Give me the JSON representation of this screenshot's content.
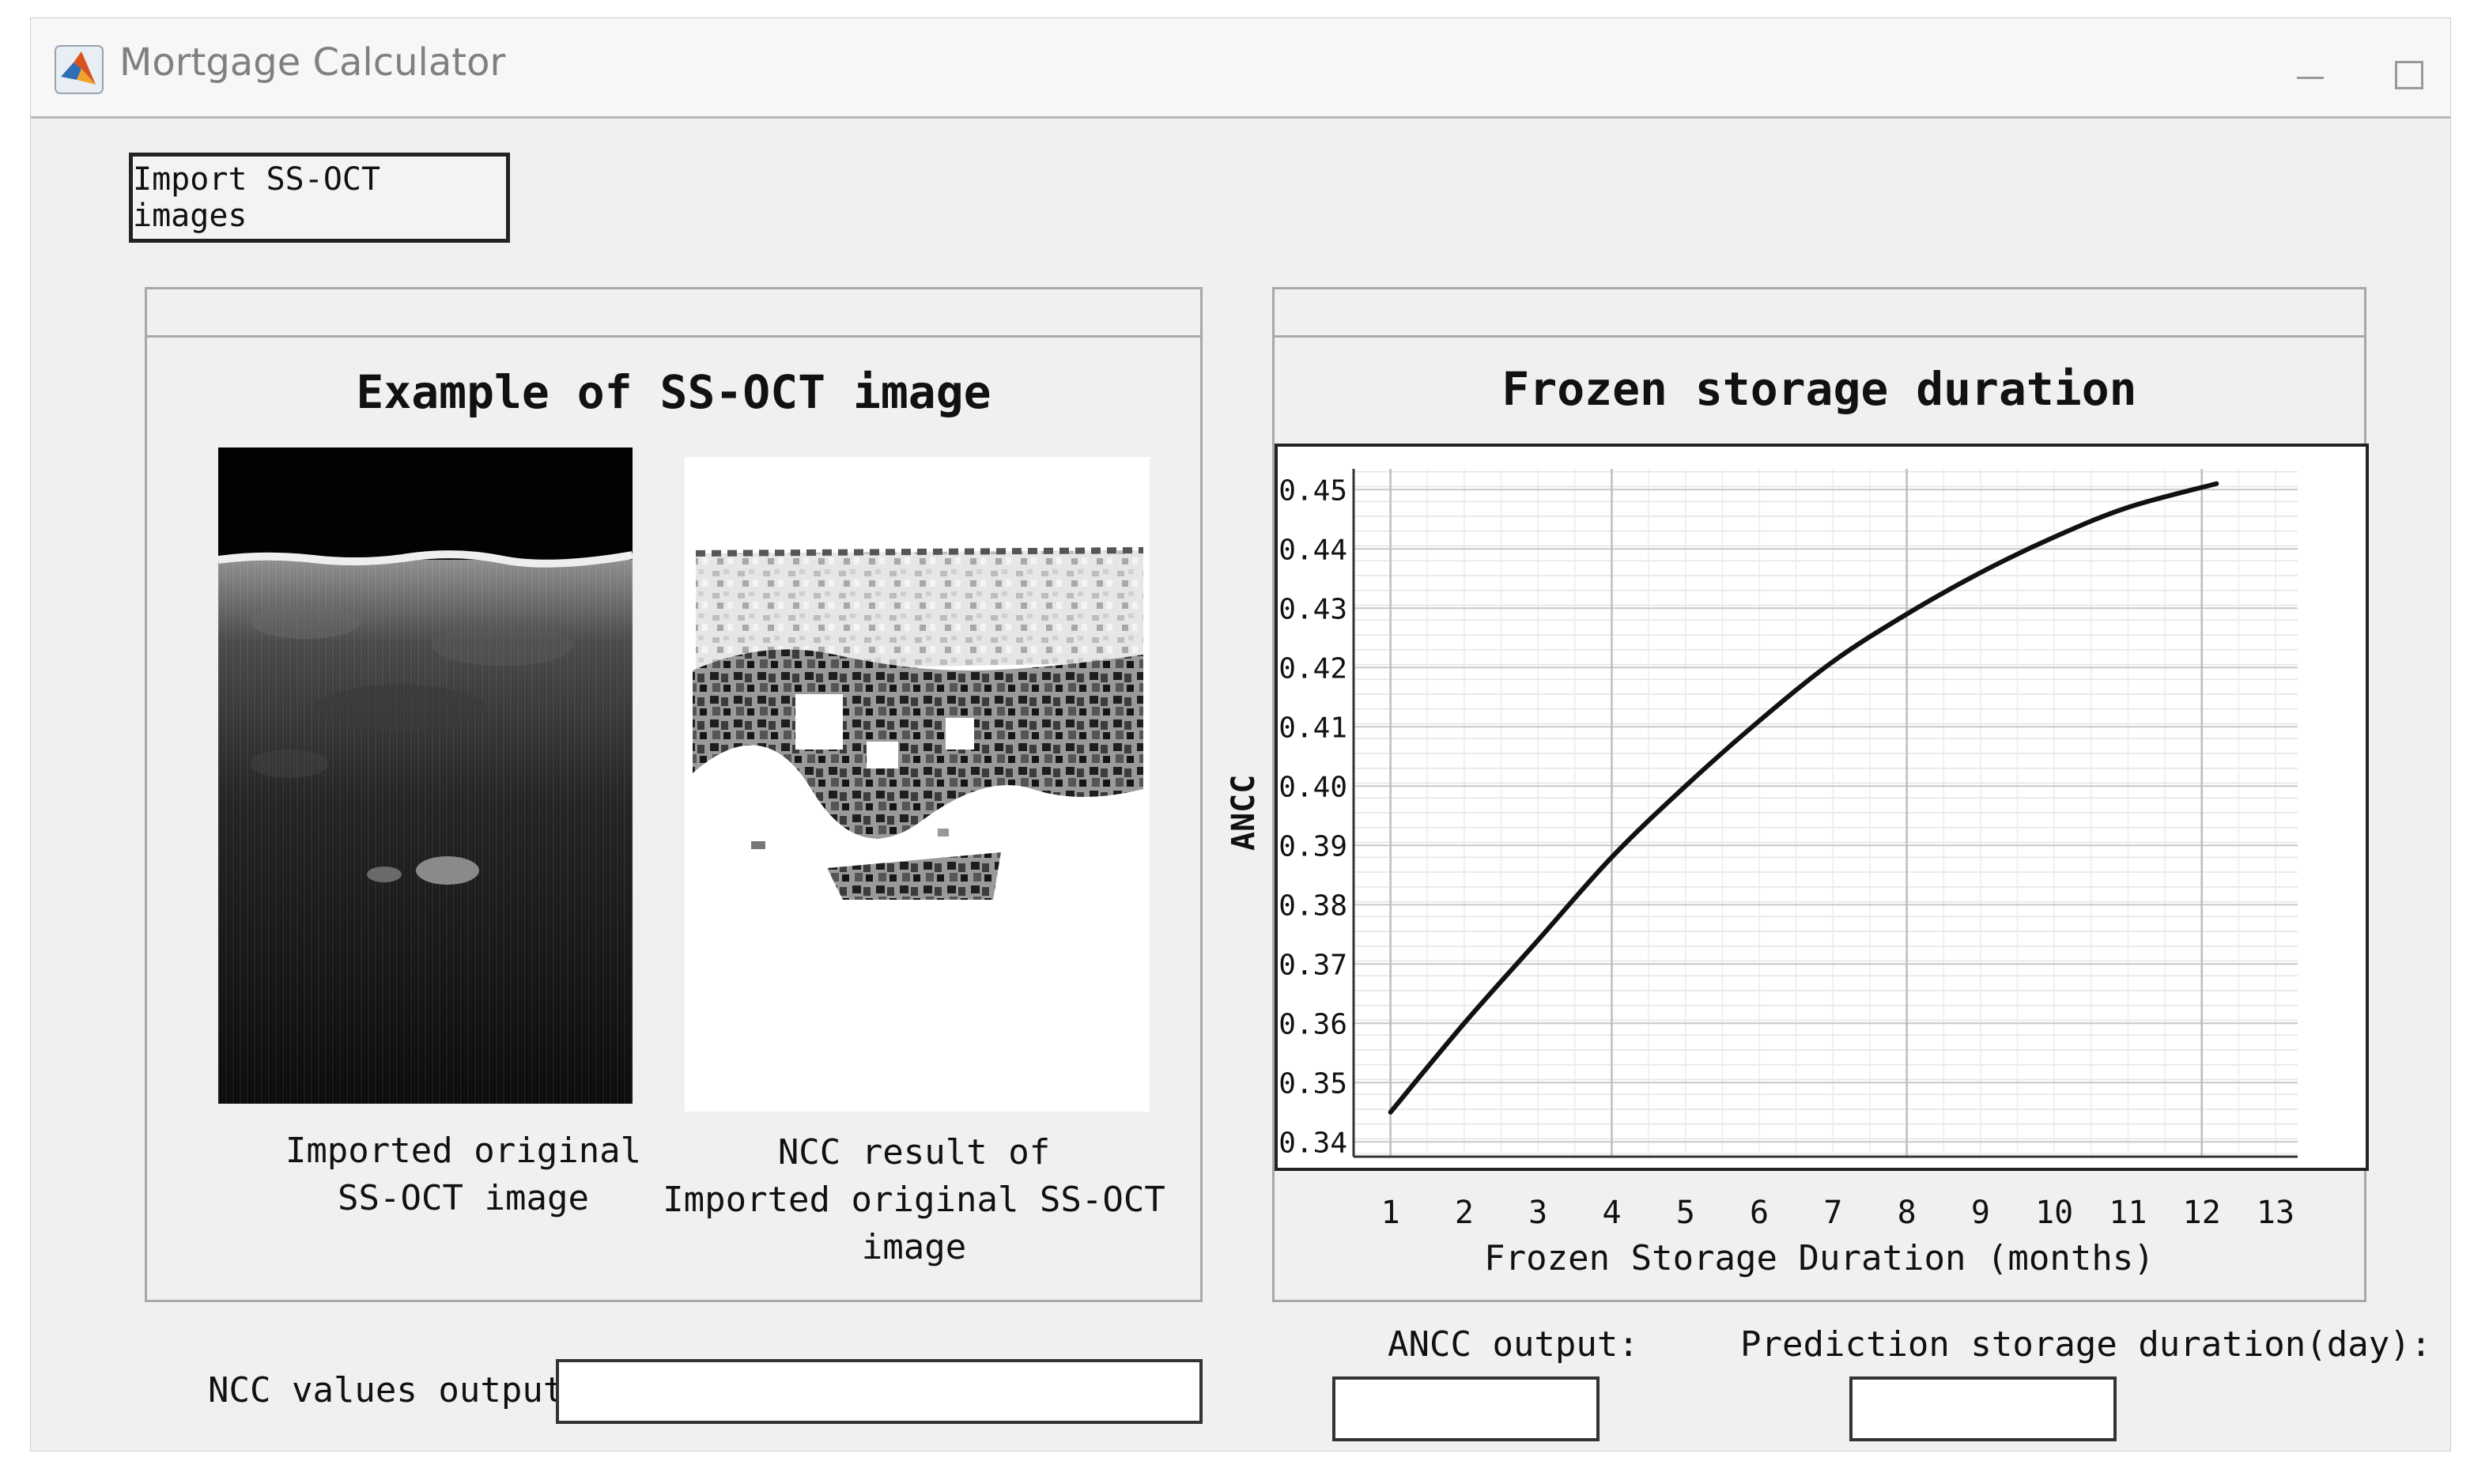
{
  "window": {
    "title": "Mortgage Calculator"
  },
  "toolbar": {
    "import_label": "Import SS-OCT images"
  },
  "left_panel": {
    "title": "Example of SS-OCT image",
    "caption_original_line1": "Imported original",
    "caption_original_line2": "SS-OCT image",
    "caption_ncc_line1": "NCC result of",
    "caption_ncc_line2": "Imported original SS-OCT image"
  },
  "right_panel": {
    "title": "Frozen storage duration"
  },
  "outputs": {
    "ncc_label": "NCC values output:",
    "ncc_value": "",
    "ancc_label": "ANCC output:",
    "ancc_value": "",
    "prediction_label": "Prediction storage duration(day):",
    "prediction_value": ""
  },
  "chart_data": {
    "type": "line",
    "title": "",
    "xlabel": "Frozen Storage Duration (months)",
    "ylabel": "ANCC",
    "x_ticks": [
      1,
      2,
      3,
      4,
      5,
      6,
      7,
      8,
      9,
      10,
      11,
      12,
      13
    ],
    "y_ticks": [
      "0.34",
      "0.35",
      "0.36",
      "0.37",
      "0.38",
      "0.39",
      "0.40",
      "0.41",
      "0.42",
      "0.43",
      "0.44",
      "0.45"
    ],
    "xlim": [
      0.5,
      13.3
    ],
    "ylim": [
      0.3375,
      0.4535
    ],
    "grid": true,
    "series": [
      {
        "x": [
          1,
          2,
          3,
          4,
          5,
          6,
          7,
          8,
          9,
          10,
          11,
          12.2
        ],
        "y": [
          0.345,
          0.36,
          0.374,
          0.388,
          0.4,
          0.411,
          0.421,
          0.429,
          0.436,
          0.442,
          0.447,
          0.451
        ],
        "color": "#111111"
      }
    ]
  }
}
